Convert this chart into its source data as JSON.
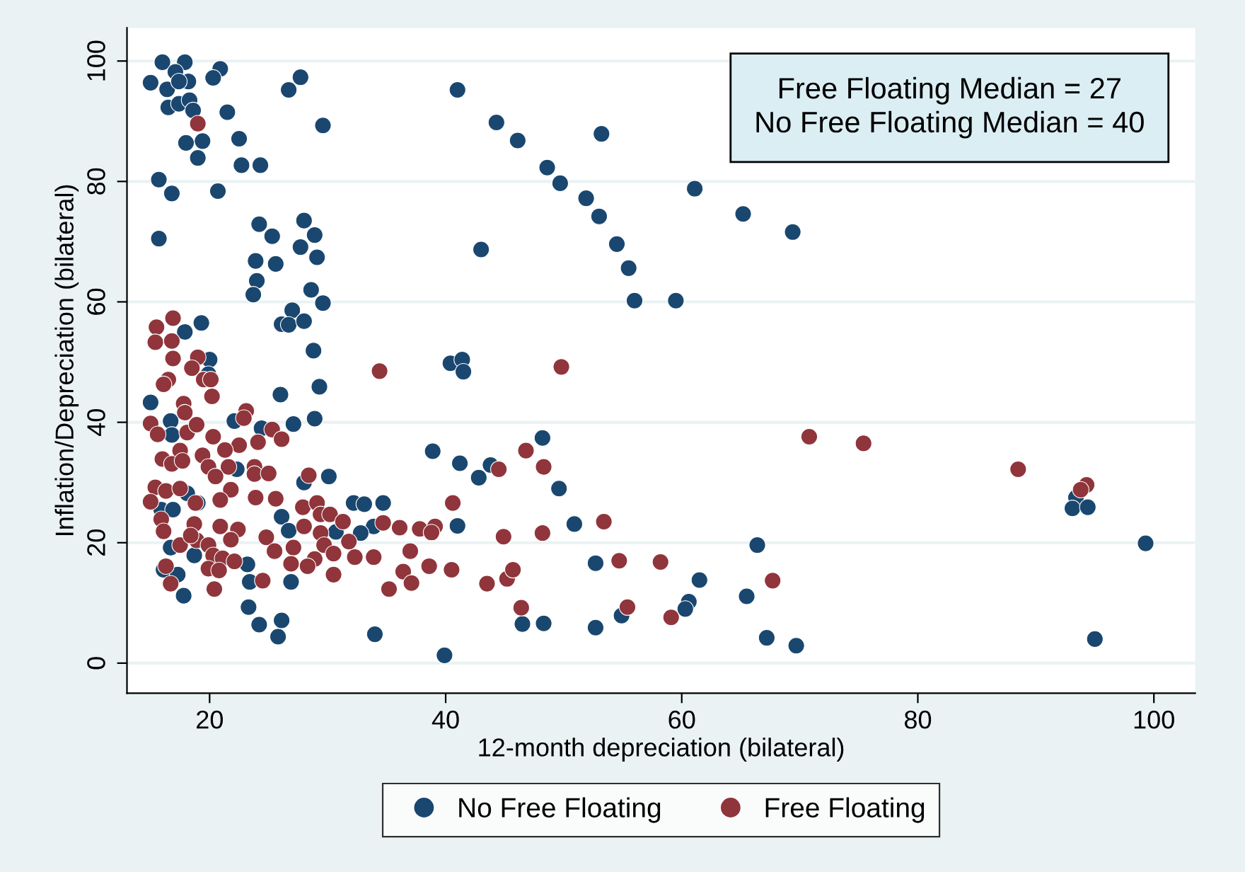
{
  "chart_data": {
    "type": "scatter",
    "xlabel": "12-month depreciation (bilateral)",
    "ylabel": "Inflation/Depreciation (bilateral)",
    "annotations": [
      "Free Floating Median = 27\nNo Free Floating Median = 40"
    ],
    "xlim": [
      13,
      103.5
    ],
    "ylim": [
      -5,
      105.5
    ],
    "xticks": [
      20,
      40,
      60,
      80,
      100
    ],
    "yticks": [
      0,
      20,
      40,
      60,
      80,
      100
    ],
    "grid": "y",
    "legend": "bottom",
    "marker": "circle",
    "series": [
      {
        "name": "No Free Floating",
        "color": "#1a476f",
        "x": [
          16.0,
          17.9,
          15.0,
          17.1,
          18.2,
          16.4,
          17.4,
          20.9,
          20.3,
          27.7,
          26.7,
          16.5,
          17.4,
          18.3,
          18.6,
          21.5,
          29.6,
          18.0,
          19.4,
          22.5,
          19.0,
          22.7,
          24.3,
          15.7,
          16.8,
          20.7,
          24.2,
          25.3,
          28.0,
          28.9,
          15.7,
          27.7,
          29.1,
          23.9,
          25.6,
          24.0,
          23.7,
          28.6,
          29.6,
          27.0,
          26.1,
          26.7,
          28.0,
          19.3,
          17.9,
          28.8,
          41.0,
          44.3,
          46.1,
          53.2,
          48.6,
          49.7,
          51.9,
          53.0,
          61.1,
          65.2,
          69.4,
          54.5,
          55.5,
          43.0,
          56.0,
          59.5,
          40.4,
          41.4,
          41.5,
          38.9,
          41.2,
          43.8,
          42.8,
          48.2,
          49.6,
          41.0,
          50.9,
          52.7,
          46.5,
          48.3,
          52.7,
          54.9,
          39.9,
          93.4,
          93.1,
          94.4,
          99.3,
          95.0,
          66.4,
          61.5,
          65.5,
          60.6,
          60.3,
          67.2,
          69.7,
          29.3,
          26.0,
          15.0,
          28.9,
          27.1,
          22.1,
          24.4,
          16.7,
          16.8,
          20.0,
          19.9,
          30.1,
          28.0,
          22.3,
          18.1,
          19.0,
          15.9,
          16.9,
          32.2,
          33.1,
          34.7,
          33.9,
          32.8,
          30.7,
          26.1,
          26.7,
          23.2,
          23.4,
          26.9,
          23.3,
          24.2,
          26.1,
          25.8,
          34.0,
          18.7,
          16.7,
          16.1,
          17.3,
          17.8
        ],
        "values": [
          99.8,
          99.8,
          96.4,
          98.2,
          96.6,
          95.3,
          96.6,
          98.7,
          97.2,
          97.3,
          95.2,
          92.3,
          92.9,
          93.5,
          91.8,
          91.5,
          89.3,
          86.4,
          86.7,
          87.1,
          83.9,
          82.7,
          82.7,
          80.3,
          78.0,
          78.4,
          72.9,
          70.9,
          73.5,
          71.1,
          70.5,
          69.1,
          67.4,
          66.8,
          66.3,
          63.5,
          61.2,
          62.0,
          59.8,
          58.6,
          56.3,
          56.2,
          56.8,
          56.5,
          55.0,
          51.9,
          95.2,
          89.8,
          86.8,
          87.9,
          82.3,
          79.7,
          77.2,
          74.2,
          78.8,
          74.6,
          71.6,
          69.6,
          65.6,
          68.7,
          60.2,
          60.2,
          49.8,
          50.4,
          48.4,
          35.2,
          33.2,
          32.9,
          30.8,
          37.4,
          29.0,
          22.8,
          23.1,
          16.6,
          6.5,
          6.6,
          5.9,
          7.9,
          1.3,
          27.5,
          25.7,
          25.9,
          19.9,
          4.0,
          19.6,
          13.8,
          11.1,
          10.2,
          9.0,
          4.2,
          2.9,
          45.9,
          44.6,
          43.3,
          40.6,
          39.7,
          40.2,
          39.0,
          40.2,
          37.9,
          50.4,
          48.0,
          31.0,
          30.0,
          32.2,
          28.2,
          26.6,
          25.5,
          25.5,
          26.6,
          26.4,
          26.6,
          22.7,
          21.6,
          21.8,
          24.3,
          22.0,
          16.4,
          13.5,
          13.5,
          9.3,
          6.4,
          7.1,
          4.4,
          4.8,
          17.9,
          19.2,
          15.5,
          14.7,
          11.2
        ]
      },
      {
        "name": "Free Floating",
        "color": "#90353b",
        "x": [
          19.0,
          16.9,
          15.5,
          49.8,
          44.5,
          46.8,
          48.3,
          40.6,
          44.9,
          48.2,
          53.4,
          36.1,
          37.8,
          39.1,
          38.8,
          37.0,
          36.4,
          37.1,
          38.6,
          40.5,
          43.5,
          45.2,
          45.7,
          54.7,
          58.2,
          46.4,
          55.4,
          59.1,
          70.8,
          75.4,
          88.5,
          94.3,
          93.8,
          67.7,
          34.4,
          15.4,
          16.8,
          16.9,
          19.0,
          18.5,
          16.5,
          16.1,
          19.5,
          20.1,
          20.2,
          17.8,
          17.9,
          23.1,
          22.9,
          15.0,
          15.6,
          18.1,
          18.9,
          20.3,
          22.5,
          21.3,
          19.4,
          17.5,
          16.0,
          16.8,
          17.7,
          24.1,
          25.3,
          26.1,
          23.8,
          23.8,
          25.0,
          21.6,
          19.9,
          20.5,
          21.8,
          15.4,
          16.3,
          17.5,
          15.0,
          18.8,
          20.9,
          23.9,
          25.6,
          28.4,
          15.9,
          16.1,
          18.7,
          20.9,
          22.4,
          21.8,
          24.8,
          27.1,
          25.5,
          27.9,
          29.1,
          29.4,
          30.2,
          31.3,
          28.0,
          29.4,
          29.7,
          30.5,
          28.9,
          28.3,
          26.9,
          30.5,
          31.8,
          32.3,
          33.9,
          34.7,
          35.2,
          16.3,
          16.7,
          17.5,
          18.9,
          19.9,
          20.3,
          21.1,
          19.9,
          20.8,
          20.4,
          22.1,
          24.5,
          18.4
        ],
        "values": [
          89.6,
          57.3,
          55.8,
          49.2,
          32.2,
          35.3,
          32.6,
          26.6,
          21.0,
          21.6,
          23.5,
          22.5,
          22.3,
          22.7,
          21.7,
          18.6,
          15.2,
          13.3,
          16.1,
          15.5,
          13.2,
          14.0,
          15.5,
          17.0,
          16.8,
          9.2,
          9.3,
          7.6,
          37.6,
          36.5,
          32.2,
          29.6,
          28.8,
          13.7,
          48.5,
          53.3,
          53.5,
          50.6,
          50.8,
          49.0,
          47.1,
          46.3,
          47.1,
          47.1,
          44.3,
          43.1,
          41.6,
          41.9,
          40.7,
          39.8,
          38.0,
          38.3,
          39.6,
          37.6,
          36.2,
          35.4,
          34.5,
          35.3,
          33.9,
          33.1,
          33.6,
          36.7,
          38.8,
          37.2,
          32.6,
          31.4,
          31.5,
          32.6,
          32.6,
          31.0,
          28.8,
          29.2,
          28.6,
          29.0,
          26.8,
          26.6,
          27.1,
          27.5,
          27.3,
          31.2,
          23.9,
          21.9,
          23.1,
          22.7,
          22.2,
          20.5,
          20.9,
          19.2,
          18.6,
          25.9,
          26.6,
          24.7,
          24.7,
          23.5,
          22.7,
          21.6,
          19.6,
          18.2,
          17.3,
          16.1,
          16.5,
          14.7,
          20.2,
          17.6,
          17.6,
          23.3,
          12.3,
          16.1,
          13.2,
          19.6,
          20.4,
          19.6,
          17.9,
          17.4,
          15.7,
          15.4,
          12.3,
          16.9,
          13.7,
          21.2
        ]
      }
    ]
  }
}
